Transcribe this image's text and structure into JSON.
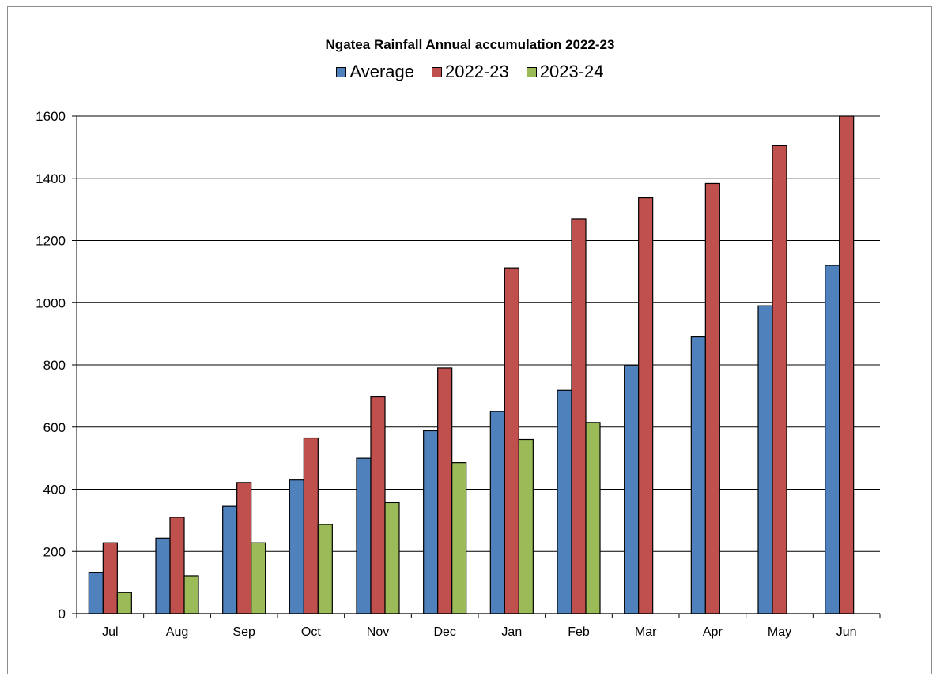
{
  "chart_data": {
    "type": "bar",
    "title": "Ngatea Rainfall  Annual  accumulation  2022-23",
    "categories": [
      "Jul",
      "Aug",
      "Sep",
      "Oct",
      "Nov",
      "Dec",
      "Jan",
      "Feb",
      "Mar",
      "Apr",
      "May",
      "Jun"
    ],
    "series": [
      {
        "name": "Average",
        "color": "#4f81bd",
        "values": [
          133,
          243,
          345,
          430,
          500,
          588,
          650,
          718,
          797,
          890,
          990,
          1120
        ]
      },
      {
        "name": "2022-23",
        "color": "#c0504d",
        "values": [
          228,
          310,
          422,
          565,
          697,
          790,
          1112,
          1270,
          1337,
          1383,
          1505,
          1600
        ]
      },
      {
        "name": "2023-24",
        "color": "#9bbb59",
        "values": [
          68,
          122,
          228,
          287,
          357,
          486,
          560,
          615,
          null,
          null,
          null,
          null
        ]
      }
    ],
    "ylim": [
      0,
      1600
    ],
    "yticks": [
      0,
      200,
      400,
      600,
      800,
      1000,
      1200,
      1400,
      1600
    ],
    "xlabel": "",
    "ylabel": "",
    "grid": true,
    "legend_position": "top"
  }
}
